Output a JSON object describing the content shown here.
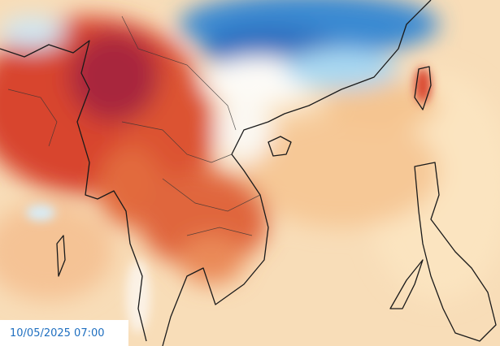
{
  "timestamp": "10/05/2025 07:00"
}
